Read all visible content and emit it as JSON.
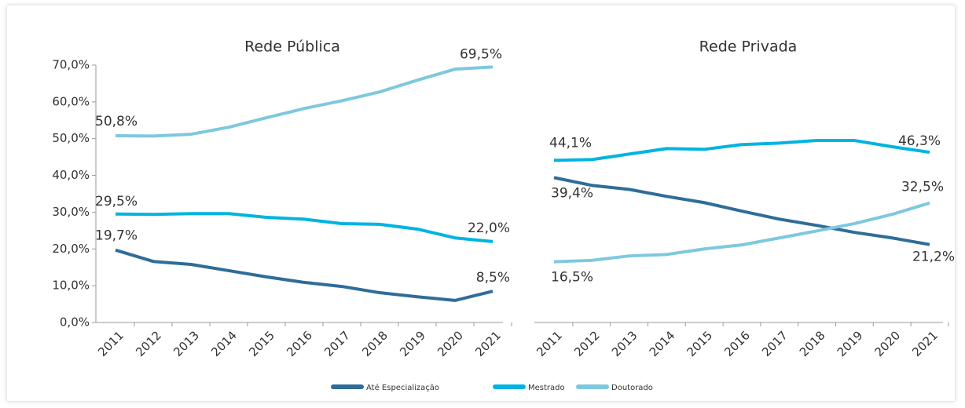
{
  "chart_data": [
    {
      "type": "line",
      "title": "Rede Pública",
      "categories": [
        "2011",
        "2012",
        "2013",
        "2014",
        "2015",
        "2016",
        "2017",
        "2018",
        "2019",
        "2020",
        "2021"
      ],
      "ylim": [
        0,
        70
      ],
      "yticks": [
        {
          "value": 0,
          "label": "0,0%"
        },
        {
          "value": 10,
          "label": "10,0%"
        },
        {
          "value": 20,
          "label": "20,0%"
        },
        {
          "value": 30,
          "label": "30,0%"
        },
        {
          "value": 40,
          "label": "40,0%"
        },
        {
          "value": 50,
          "label": "50,0%"
        },
        {
          "value": 60,
          "label": "60,0%"
        },
        {
          "value": 70,
          "label": "70,0%"
        }
      ],
      "series": [
        {
          "name": "Até Especialização",
          "color": "#2e6d99",
          "values": [
            19.7,
            16.6,
            15.8,
            14.1,
            12.4,
            10.9,
            9.8,
            8.1,
            7.0,
            6.0,
            8.5
          ],
          "value_labels": [
            "19,7%",
            null,
            null,
            null,
            null,
            null,
            null,
            null,
            null,
            null,
            "8,5%"
          ]
        },
        {
          "name": "Mestrado",
          "color": "#00b4e0",
          "values": [
            29.5,
            29.4,
            29.6,
            29.6,
            28.6,
            28.1,
            26.9,
            26.7,
            25.4,
            23.0,
            22.0
          ],
          "value_labels": [
            "29,5%",
            null,
            null,
            null,
            null,
            null,
            null,
            null,
            null,
            null,
            "22,0%"
          ]
        },
        {
          "name": "Doutorado",
          "color": "#7ec8df",
          "values": [
            50.8,
            50.7,
            51.2,
            53.1,
            55.7,
            58.2,
            60.3,
            62.7,
            65.9,
            68.9,
            69.5
          ],
          "value_labels": [
            "50,8%",
            null,
            null,
            null,
            null,
            null,
            null,
            null,
            null,
            null,
            "69,5%"
          ]
        }
      ]
    },
    {
      "type": "line",
      "title": "Rede Privada",
      "categories": [
        "2011",
        "2012",
        "2013",
        "2014",
        "2015",
        "2016",
        "2017",
        "2018",
        "2019",
        "2020",
        "2021"
      ],
      "ylim": [
        0,
        70
      ],
      "series": [
        {
          "name": "Até Especialização",
          "color": "#2e6d99",
          "values": [
            39.4,
            37.3,
            36.2,
            34.3,
            32.6,
            30.3,
            28.1,
            26.4,
            24.5,
            23.0,
            21.2
          ],
          "value_labels": [
            "39,4%",
            null,
            null,
            null,
            null,
            null,
            null,
            null,
            null,
            null,
            "21,2%"
          ]
        },
        {
          "name": "Mestrado",
          "color": "#00b4e0",
          "values": [
            44.1,
            44.3,
            45.8,
            47.3,
            47.1,
            48.4,
            48.8,
            49.5,
            49.5,
            47.8,
            46.3
          ],
          "value_labels": [
            "44,1%",
            null,
            null,
            null,
            null,
            null,
            null,
            null,
            null,
            null,
            "46,3%"
          ]
        },
        {
          "name": "Doutorado",
          "color": "#7ec8df",
          "values": [
            16.5,
            16.9,
            18.1,
            18.5,
            20.0,
            21.1,
            23.0,
            24.9,
            26.9,
            29.4,
            32.5
          ],
          "value_labels": [
            "16,5%",
            null,
            null,
            null,
            null,
            null,
            null,
            null,
            null,
            null,
            "32,5%"
          ]
        }
      ]
    }
  ]
}
